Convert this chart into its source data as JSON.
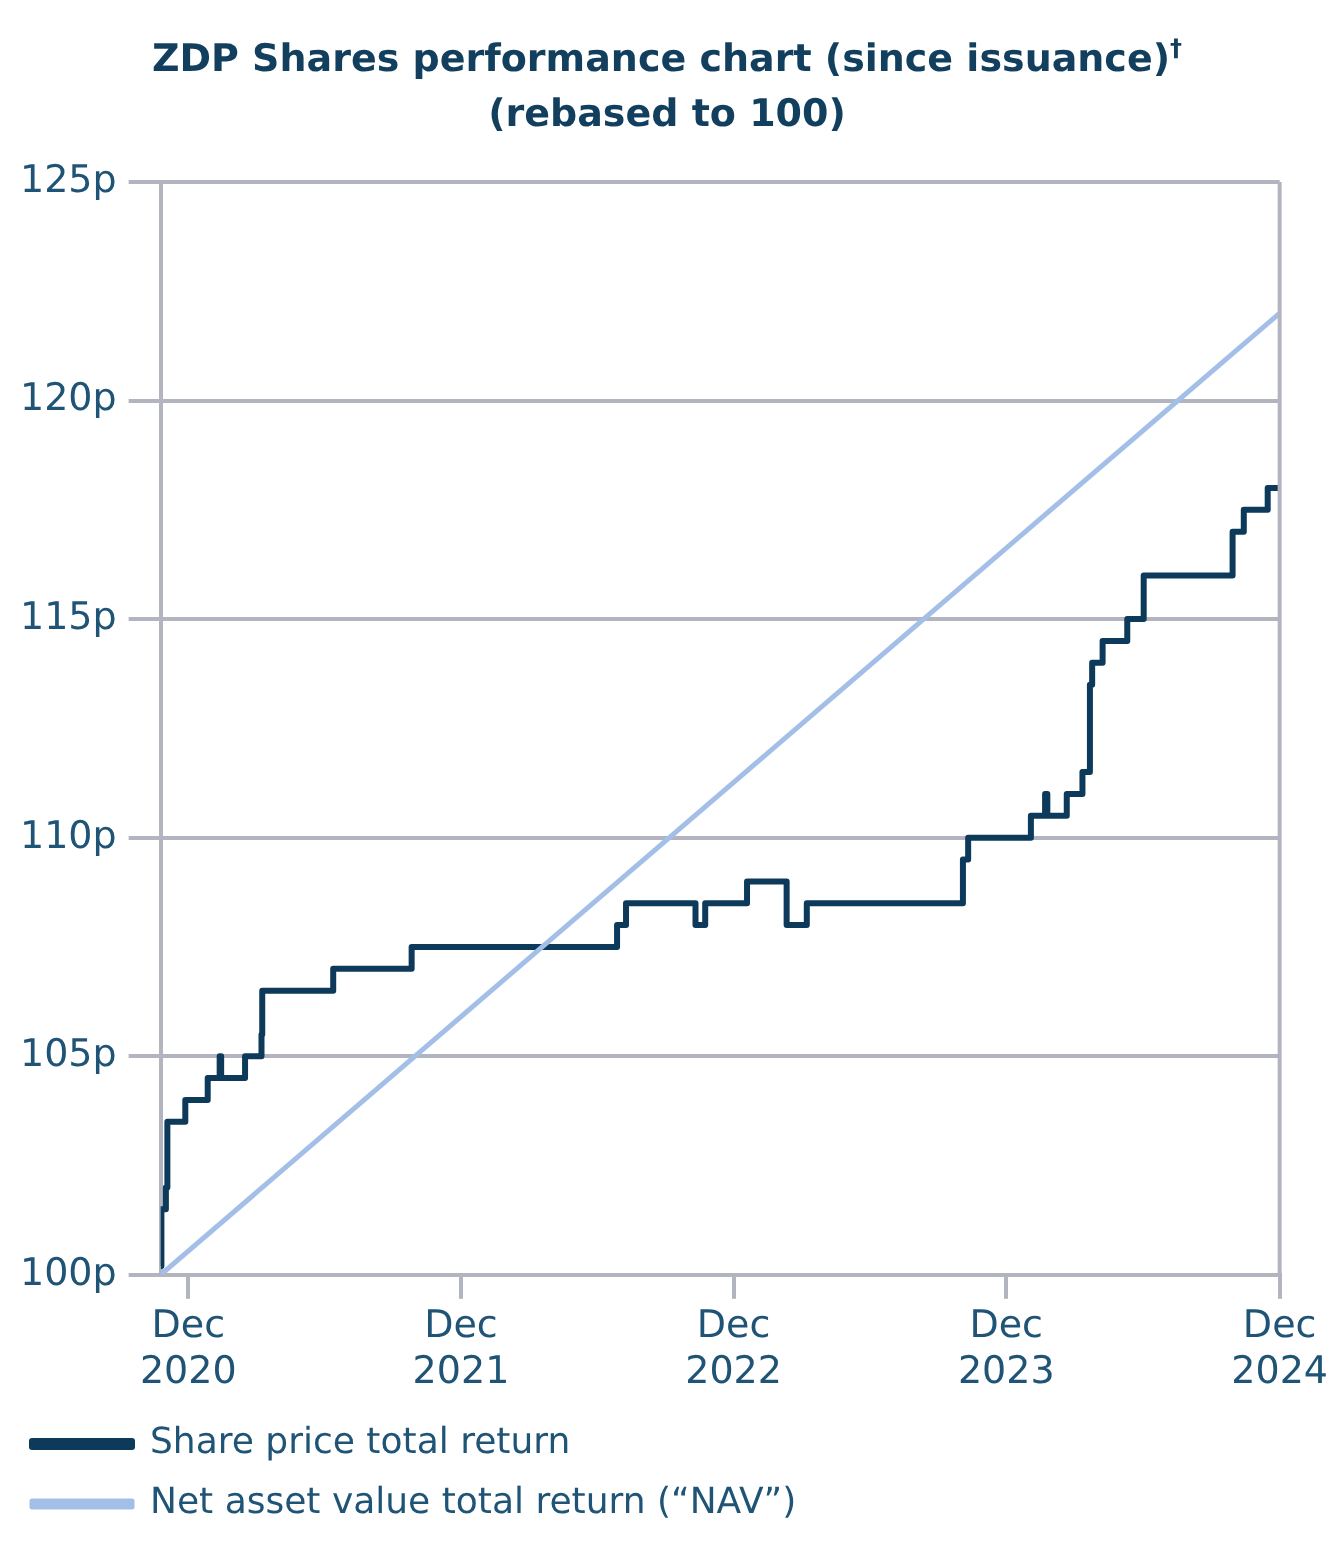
{
  "chart_data": {
    "type": "step",
    "title": "ZDP Shares performance chart (since issuance)$^{†}$",
    "subtitle": "(rebased to 100)",
    "xlim": [
      "2020-10-25",
      "2024-12-01"
    ],
    "xticks": [
      {
        "value": "2020-12-01",
        "label": "Dec 2020"
      },
      {
        "value": "2021-12-01",
        "label": "Dec 2021"
      },
      {
        "value": "2022-12-01",
        "label": "Dec 2022"
      },
      {
        "value": "2023-12-01",
        "label": "Dec 2023"
      },
      {
        "value": "2024-12-01",
        "label": "Dec 2024"
      }
    ],
    "ylim": [
      100,
      125
    ],
    "yticks": [
      {
        "value": 100,
        "label": "100p"
      },
      {
        "value": 105,
        "label": "105p"
      },
      {
        "value": 110,
        "label": "110p"
      },
      {
        "value": 115,
        "label": "115p"
      },
      {
        "value": 120,
        "label": "120p"
      },
      {
        "value": 125,
        "label": "125p"
      }
    ],
    "grid": "y",
    "legend": "bottom left",
    "marker": "none",
    "line_style": "solid",
    "series": [
      {
        "name": "Share price total return",
        "color": "#0d3a5a",
        "x": [
          "2020-10-25",
          "2020-10-26",
          "2020-11-01",
          "2020-11-03",
          "2020-11-27",
          "2020-12-27",
          "2021-01-12",
          "2021-01-14",
          "2021-02-15",
          "2021-03-09",
          "2021-03-10",
          "2021-06-13",
          "2021-09-26",
          "2022-06-28",
          "2022-07-10",
          "2022-10-11",
          "2022-10-24",
          "2022-12-19",
          "2023-02-10",
          "2023-03-09",
          "2023-10-04",
          "2023-10-11",
          "2024-01-03",
          "2024-01-22",
          "2024-01-25",
          "2024-02-20",
          "2024-03-12",
          "2024-03-22",
          "2024-03-25",
          "2024-04-08",
          "2024-05-11",
          "2024-06-02",
          "2024-09-29",
          "2024-10-14",
          "2024-11-15",
          "2024-12-01"
        ],
        "values": [
          100.2,
          101.5,
          102,
          103.5,
          104,
          104.5,
          105,
          104.5,
          105,
          105.5,
          106.5,
          107,
          107.5,
          108,
          108.5,
          108,
          108.5,
          109,
          108,
          108.5,
          109.5,
          110,
          110.5,
          111,
          110.5,
          111,
          111.5,
          113.5,
          114,
          114.5,
          115,
          116,
          117,
          117.5,
          118,
          118
        ]
      },
      {
        "name": "Net asset value total return (“NAV”)",
        "color": "#a3bfe8",
        "type": "line",
        "x": [
          "2020-10-25",
          "2024-12-01"
        ],
        "values": [
          100,
          122
        ]
      }
    ]
  }
}
